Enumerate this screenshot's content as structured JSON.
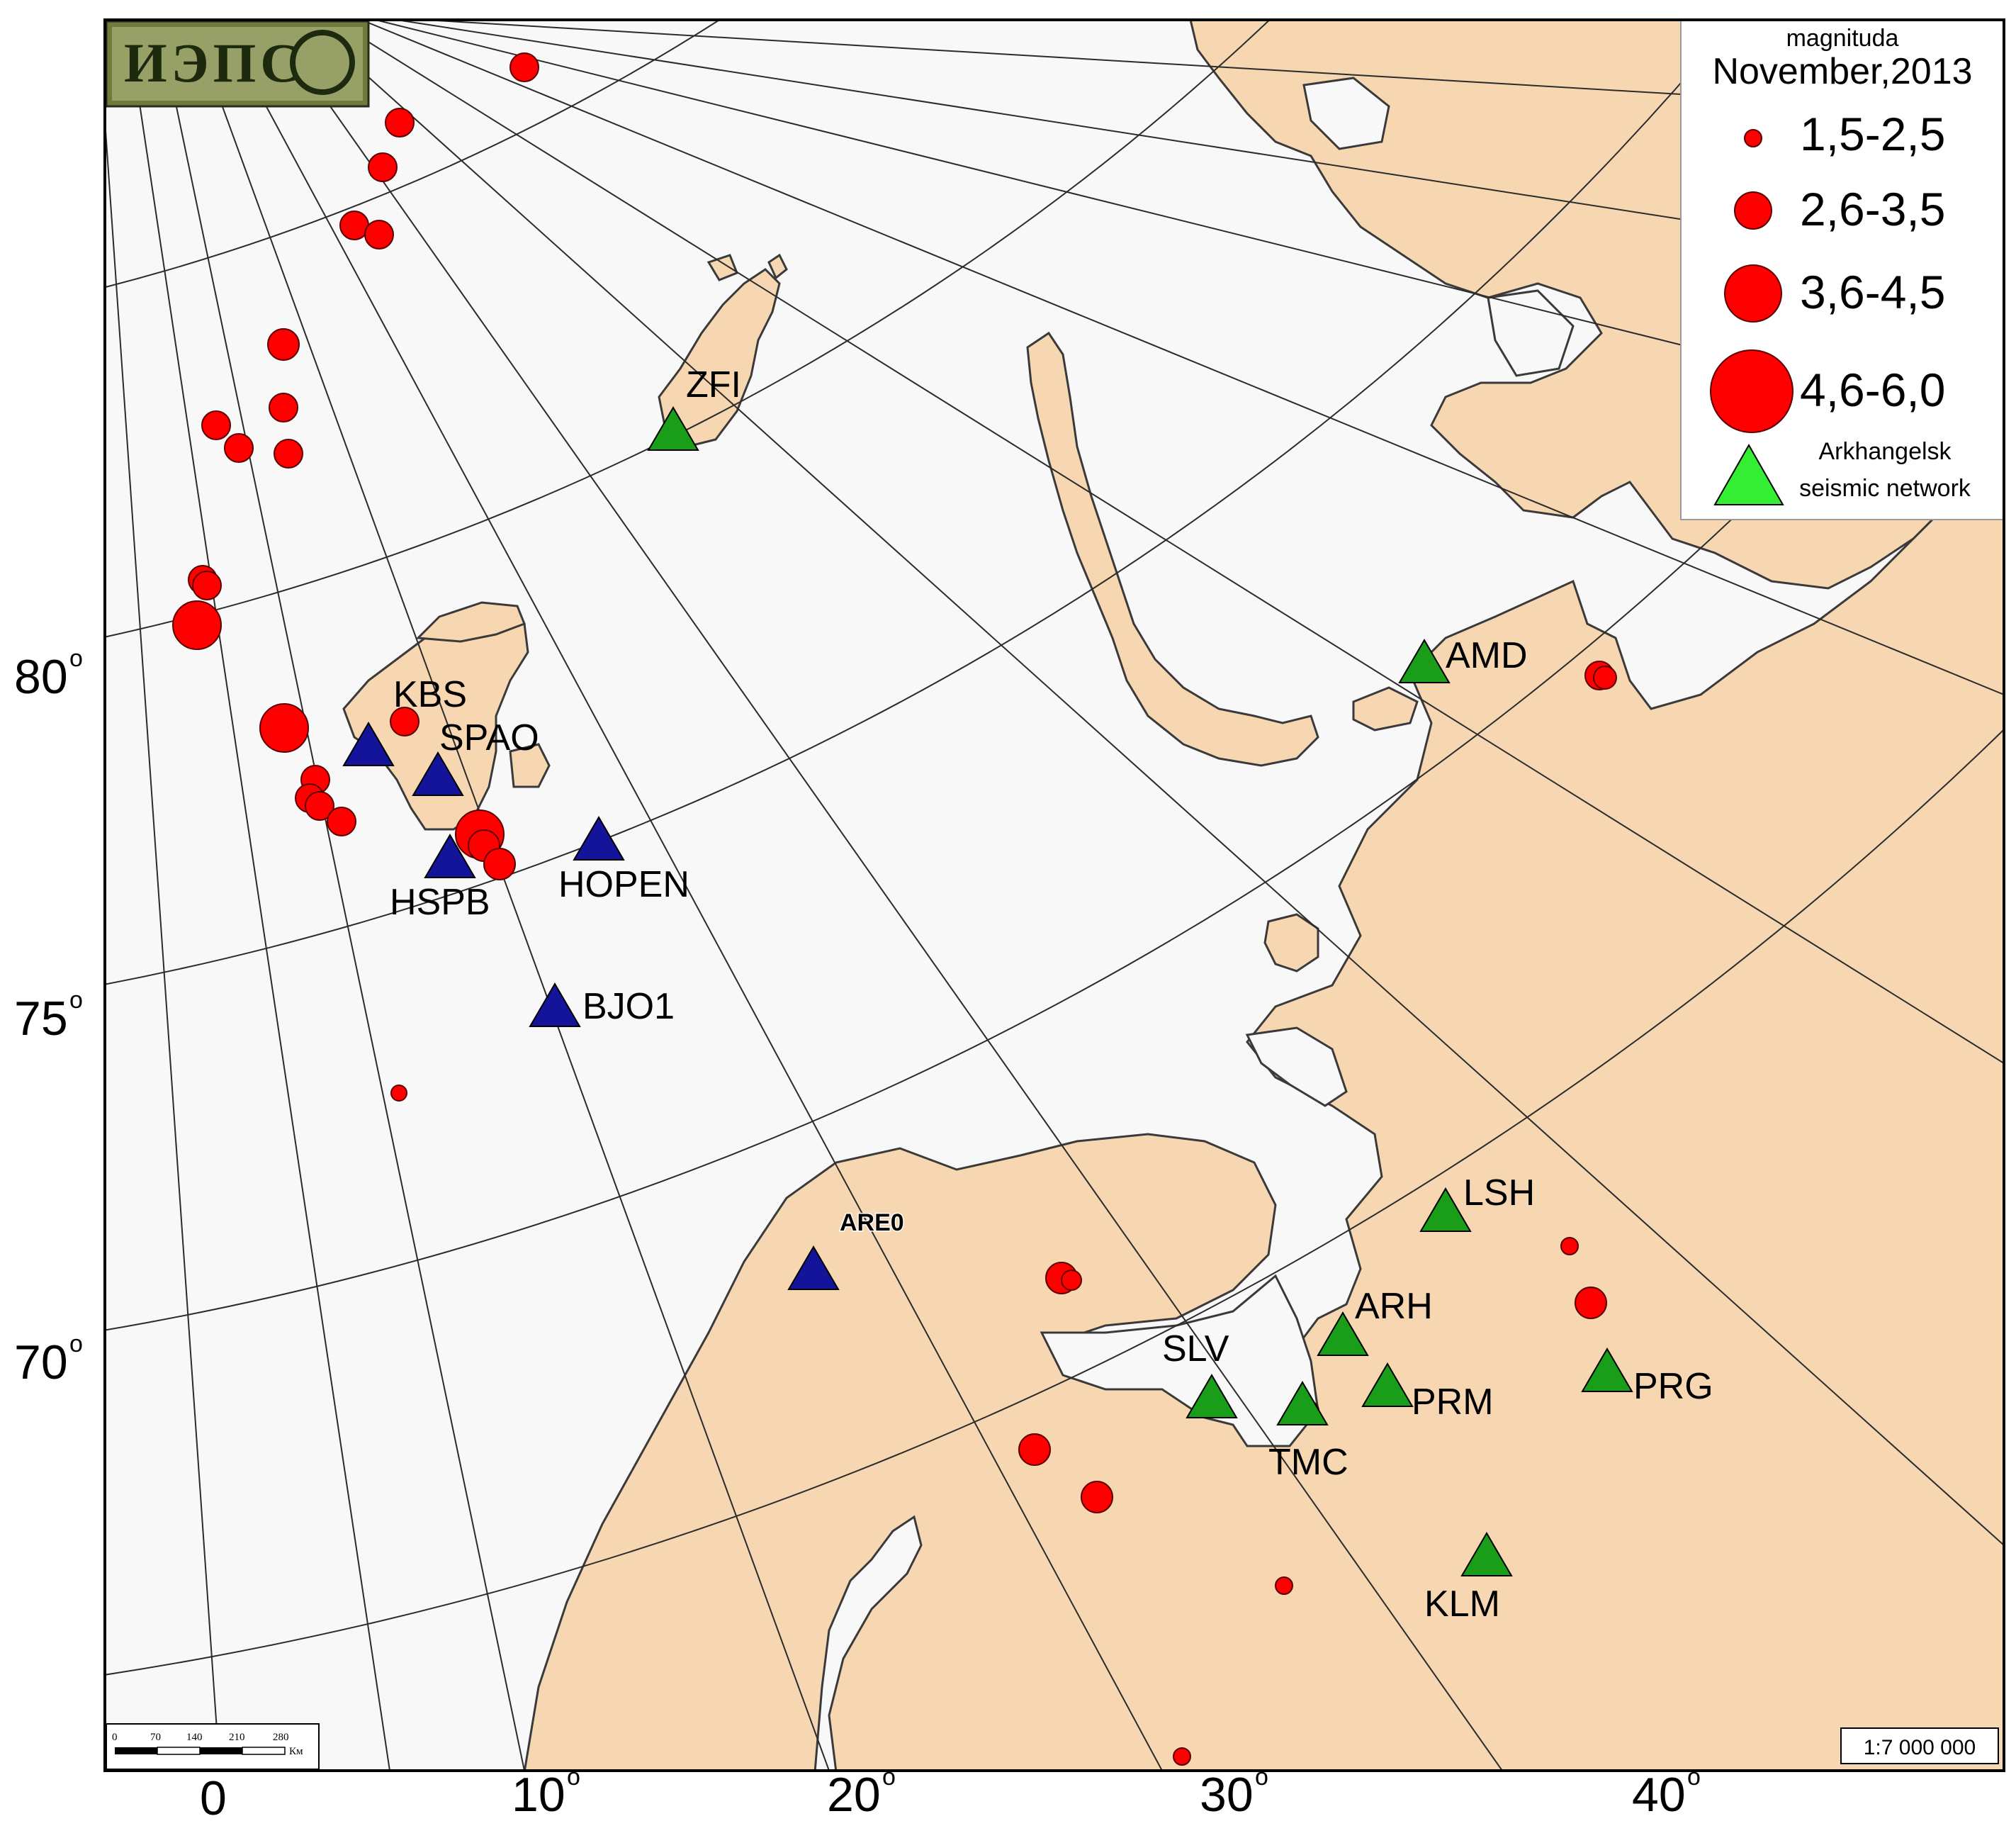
{
  "logo": {
    "text": "ИЭПС"
  },
  "legend": {
    "title": "magnituda",
    "date": "November,2013",
    "magnitude_classes": [
      {
        "label": "1,5-2,5"
      },
      {
        "label": "2,6-3,5"
      },
      {
        "label": "3,6-4,5"
      },
      {
        "label": "4,6-6,0"
      }
    ],
    "network_label_line1": "Arkhangelsk",
    "network_label_line2": "seismic network"
  },
  "colors": {
    "sea": "#f8f8f8",
    "land": "#f7d7b2",
    "coast": "#3a3a3a",
    "grid": "#2b2b2b",
    "earthquake": "#ff0000",
    "arkhangelsk_station": "#1a9e1a",
    "other_station": "#14149a"
  },
  "latitude_labels": [
    "80",
    "75",
    "70"
  ],
  "longitude_labels": [
    "0",
    "10",
    "20",
    "30",
    "40"
  ],
  "degree_mark": "o",
  "stations_arkhangelsk": [
    "ZFI",
    "AMD",
    "LSH",
    "ARH",
    "SLV",
    "TMC",
    "PRM",
    "PRG",
    "KLM"
  ],
  "stations_other": [
    "KBS",
    "SPAO",
    "HSPB",
    "HOPEN",
    "BJO1",
    "ARE0"
  ],
  "scale_bar": {
    "ticks": [
      "0",
      "70",
      "140",
      "210",
      "280"
    ],
    "unit": "Км"
  },
  "scale_ratio": "1:7 000 000"
}
